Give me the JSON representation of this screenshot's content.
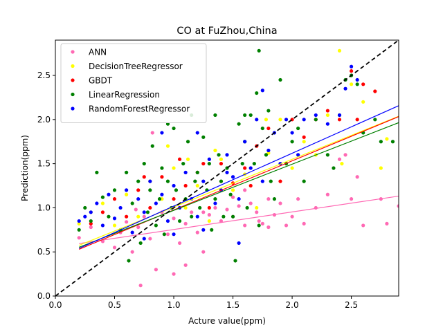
{
  "chart_data": {
    "type": "scatter",
    "title": "CO at FuZhou,China",
    "xlabel": "Acture value(ppm)",
    "ylabel": "Prediction(ppm)",
    "xlim": [
      0.0,
      2.9
    ],
    "ylim": [
      0.0,
      2.9
    ],
    "xticks": [
      0.0,
      0.5,
      1.0,
      1.5,
      2.0,
      2.5
    ],
    "yticks": [
      0.0,
      0.5,
      1.0,
      1.5,
      2.0,
      2.5
    ],
    "xtick_labels": [
      "0.0",
      "0.5",
      "1.0",
      "1.5",
      "2.0",
      "2.5"
    ],
    "ytick_labels": [
      "0.0",
      "0.5",
      "1.0",
      "1.5",
      "2.0",
      "2.5"
    ],
    "grid": false,
    "legend_position": "top-left",
    "identity_line": {
      "style": "dashed",
      "color": "#000000",
      "x": [
        0.0,
        2.9
      ],
      "y": [
        0.0,
        2.9
      ]
    },
    "series": [
      {
        "name": "ANN",
        "color": "#ff69b4",
        "points": [
          [
            0.2,
            0.66
          ],
          [
            0.3,
            0.78
          ],
          [
            0.4,
            0.62
          ],
          [
            0.5,
            0.55
          ],
          [
            0.55,
            0.72
          ],
          [
            0.6,
            0.84
          ],
          [
            0.65,
            0.5
          ],
          [
            0.7,
            0.78
          ],
          [
            0.72,
            0.12
          ],
          [
            0.75,
            0.9
          ],
          [
            0.8,
            0.65
          ],
          [
            0.85,
            0.3
          ],
          [
            0.9,
            0.95
          ],
          [
            0.95,
            0.7
          ],
          [
            1.0,
            0.88
          ],
          [
            1.05,
            0.6
          ],
          [
            1.1,
            0.82
          ],
          [
            1.15,
            0.95
          ],
          [
            1.2,
            0.72
          ],
          [
            1.25,
            0.5
          ],
          [
            1.3,
            0.92
          ],
          [
            1.35,
            1.0
          ],
          [
            1.4,
            0.85
          ],
          [
            1.45,
            0.98
          ],
          [
            1.5,
            0.9
          ],
          [
            1.55,
            1.02
          ],
          [
            1.6,
            0.8
          ],
          [
            1.65,
            1.05
          ],
          [
            1.7,
            0.95
          ],
          [
            1.75,
            0.82
          ],
          [
            1.8,
            1.1
          ],
          [
            1.85,
            0.92
          ],
          [
            1.9,
            1.05
          ],
          [
            1.95,
            0.8
          ],
          [
            2.0,
            0.9
          ],
          [
            2.05,
            1.1
          ],
          [
            2.1,
            0.82
          ],
          [
            2.2,
            1.0
          ],
          [
            2.3,
            1.15
          ],
          [
            2.4,
            1.55
          ],
          [
            2.45,
            1.6
          ],
          [
            2.5,
            1.1
          ],
          [
            2.55,
            1.35
          ],
          [
            2.6,
            0.8
          ],
          [
            2.75,
            1.1
          ],
          [
            2.8,
            0.82
          ],
          [
            2.9,
            1.02
          ],
          [
            1.4,
            1.3
          ],
          [
            1.6,
            1.2
          ],
          [
            1.8,
            0.78
          ],
          [
            0.82,
            1.85
          ],
          [
            1.0,
            0.25
          ],
          [
            1.1,
            0.35
          ],
          [
            0.68,
            0.98
          ],
          [
            1.25,
            0.95
          ],
          [
            1.5,
            1.12
          ],
          [
            1.72,
            0.85
          ]
        ],
        "fit": {
          "slope": 0.199,
          "intercept": 0.555,
          "x_range": [
            0.2,
            2.9
          ]
        }
      },
      {
        "name": "DecisionTreeRegressor",
        "color": "#ffff00",
        "points": [
          [
            0.2,
            0.82
          ],
          [
            0.3,
            0.95
          ],
          [
            0.4,
            1.05
          ],
          [
            0.5,
            0.8
          ],
          [
            0.6,
            1.15
          ],
          [
            0.7,
            0.9
          ],
          [
            0.8,
            1.3
          ],
          [
            0.9,
            1.1
          ],
          [
            1.0,
            1.45
          ],
          [
            1.1,
            1.0
          ],
          [
            1.2,
            1.25
          ],
          [
            1.3,
            0.85
          ],
          [
            1.4,
            1.55
          ],
          [
            1.5,
            1.2
          ],
          [
            1.6,
            1.38
          ],
          [
            1.7,
            1.0
          ],
          [
            1.8,
            1.62
          ],
          [
            1.9,
            2.0
          ],
          [
            2.0,
            1.45
          ],
          [
            2.1,
            1.75
          ],
          [
            2.2,
            1.6
          ],
          [
            2.3,
            2.05
          ],
          [
            2.4,
            2.78
          ],
          [
            2.42,
            1.5
          ],
          [
            2.5,
            2.4
          ],
          [
            2.6,
            2.2
          ],
          [
            2.75,
            1.45
          ],
          [
            2.8,
            1.78
          ],
          [
            1.78,
            2.0
          ],
          [
            0.95,
            1.7
          ],
          [
            1.12,
            1.55
          ],
          [
            1.35,
            1.65
          ]
        ],
        "fit": {
          "slope": 0.542,
          "intercept": 0.466,
          "x_range": [
            0.2,
            2.9
          ]
        }
      },
      {
        "name": "GBDT",
        "color": "#ff0000",
        "points": [
          [
            0.3,
            0.82
          ],
          [
            0.4,
            0.95
          ],
          [
            0.5,
            1.1
          ],
          [
            0.6,
            0.9
          ],
          [
            0.7,
            1.2
          ],
          [
            0.8,
            1.0
          ],
          [
            0.9,
            1.35
          ],
          [
            1.0,
            1.1
          ],
          [
            1.1,
            1.25
          ],
          [
            1.2,
            1.4
          ],
          [
            1.3,
            1.0
          ],
          [
            1.4,
            1.5
          ],
          [
            1.5,
            1.28
          ],
          [
            1.6,
            1.45
          ],
          [
            1.7,
            1.7
          ],
          [
            1.8,
            1.9
          ],
          [
            1.9,
            1.3
          ],
          [
            2.0,
            2.0
          ],
          [
            2.1,
            1.8
          ],
          [
            2.2,
            2.0
          ],
          [
            2.3,
            2.1
          ],
          [
            2.4,
            2.0
          ],
          [
            2.5,
            2.55
          ],
          [
            2.55,
            2.0
          ],
          [
            2.6,
            2.4
          ],
          [
            2.7,
            2.32
          ],
          [
            0.75,
            1.35
          ],
          [
            1.05,
            1.55
          ],
          [
            1.25,
            1.5
          ],
          [
            1.65,
            1.25
          ]
        ],
        "fit": {
          "slope": 0.557,
          "intercept": 0.418,
          "x_range": [
            0.2,
            2.9
          ]
        }
      },
      {
        "name": "LinearRegression",
        "color": "#008000",
        "points": [
          [
            0.2,
            0.75
          ],
          [
            0.25,
            1.0
          ],
          [
            0.3,
            0.85
          ],
          [
            0.35,
            1.4
          ],
          [
            0.4,
            1.12
          ],
          [
            0.45,
            0.9
          ],
          [
            0.5,
            1.2
          ],
          [
            0.55,
            0.75
          ],
          [
            0.6,
            1.4
          ],
          [
            0.62,
            0.4
          ],
          [
            0.65,
            1.05
          ],
          [
            0.7,
            1.3
          ],
          [
            0.72,
            0.6
          ],
          [
            0.75,
            1.5
          ],
          [
            0.78,
            0.95
          ],
          [
            0.8,
            1.2
          ],
          [
            0.82,
            1.7
          ],
          [
            0.85,
            0.8
          ],
          [
            0.88,
            1.1
          ],
          [
            0.9,
            1.45
          ],
          [
            0.92,
            0.7
          ],
          [
            0.95,
            1.3
          ],
          [
            0.98,
            1.0
          ],
          [
            1.0,
            1.9
          ],
          [
            1.02,
            1.2
          ],
          [
            1.05,
            0.85
          ],
          [
            1.08,
            1.5
          ],
          [
            1.1,
            1.1
          ],
          [
            1.12,
            1.75
          ],
          [
            1.15,
            0.9
          ],
          [
            1.18,
            1.3
          ],
          [
            1.2,
            1.4
          ],
          [
            1.22,
            1.0
          ],
          [
            1.25,
            1.8
          ],
          [
            1.28,
            1.2
          ],
          [
            1.3,
            1.5
          ],
          [
            1.32,
            0.75
          ],
          [
            1.35,
            1.1
          ],
          [
            1.38,
            1.6
          ],
          [
            1.4,
            1.3
          ],
          [
            1.42,
            0.9
          ],
          [
            1.45,
            1.45
          ],
          [
            1.48,
            1.15
          ],
          [
            1.5,
            0.9
          ],
          [
            1.52,
            0.4
          ],
          [
            1.55,
            1.95
          ],
          [
            1.58,
            1.5
          ],
          [
            1.6,
            1.75
          ],
          [
            1.62,
            1.0
          ],
          [
            1.65,
            2.05
          ],
          [
            1.68,
            1.5
          ],
          [
            1.7,
            2.3
          ],
          [
            1.72,
            0.8
          ],
          [
            1.75,
            1.9
          ],
          [
            1.78,
            1.6
          ],
          [
            1.8,
            2.1
          ],
          [
            1.82,
            1.3
          ],
          [
            1.85,
            1.1
          ],
          [
            1.9,
            2.45
          ],
          [
            1.95,
            1.5
          ],
          [
            2.0,
            1.75
          ],
          [
            2.05,
            1.9
          ],
          [
            2.1,
            1.3
          ],
          [
            2.2,
            2.0
          ],
          [
            2.3,
            1.6
          ],
          [
            2.35,
            1.45
          ],
          [
            2.4,
            2.05
          ],
          [
            2.45,
            2.45
          ],
          [
            2.5,
            2.5
          ],
          [
            2.55,
            2.4
          ],
          [
            2.6,
            1.85
          ],
          [
            2.7,
            2.0
          ],
          [
            2.75,
            1.75
          ],
          [
            2.85,
            1.75
          ],
          [
            1.72,
            2.78
          ],
          [
            1.6,
            2.05
          ],
          [
            1.35,
            2.05
          ],
          [
            0.95,
            1.95
          ],
          [
            1.15,
            2.05
          ]
        ],
        "fit": {
          "slope": 0.523,
          "intercept": 0.448,
          "x_range": [
            0.2,
            2.9
          ]
        }
      },
      {
        "name": "RandomForestRegressor",
        "color": "#0000ff",
        "points": [
          [
            0.2,
            0.85
          ],
          [
            0.25,
            0.9
          ],
          [
            0.3,
            0.95
          ],
          [
            0.35,
            1.05
          ],
          [
            0.4,
            0.8
          ],
          [
            0.45,
            1.15
          ],
          [
            0.5,
            0.88
          ],
          [
            0.55,
            1.0
          ],
          [
            0.6,
            1.2
          ],
          [
            0.65,
            0.72
          ],
          [
            0.7,
            1.1
          ],
          [
            0.75,
            0.95
          ],
          [
            0.8,
            1.3
          ],
          [
            0.85,
            1.05
          ],
          [
            0.9,
            1.15
          ],
          [
            0.95,
            0.85
          ],
          [
            1.0,
            1.25
          ],
          [
            1.05,
            1.0
          ],
          [
            1.1,
            1.4
          ],
          [
            1.15,
            1.1
          ],
          [
            1.2,
            0.9
          ],
          [
            1.25,
            1.3
          ],
          [
            1.3,
            1.55
          ],
          [
            1.35,
            1.05
          ],
          [
            1.4,
            1.2
          ],
          [
            1.45,
            1.6
          ],
          [
            1.5,
            1.35
          ],
          [
            1.55,
            1.1
          ],
          [
            1.6,
            1.75
          ],
          [
            1.65,
            1.45
          ],
          [
            1.7,
            2.0
          ],
          [
            1.75,
            1.3
          ],
          [
            1.8,
            1.65
          ],
          [
            1.85,
            1.85
          ],
          [
            1.9,
            1.5
          ],
          [
            1.95,
            2.0
          ],
          [
            2.0,
            1.85
          ],
          [
            2.05,
            1.6
          ],
          [
            2.1,
            2.0
          ],
          [
            2.2,
            2.05
          ],
          [
            2.3,
            1.95
          ],
          [
            2.4,
            2.05
          ],
          [
            2.45,
            2.35
          ],
          [
            2.5,
            2.6
          ],
          [
            2.55,
            2.45
          ],
          [
            1.75,
            2.33
          ],
          [
            1.45,
            1.4
          ],
          [
            0.9,
            1.85
          ],
          [
            1.2,
            1.85
          ],
          [
            1.0,
            0.7
          ],
          [
            1.25,
            0.75
          ],
          [
            0.75,
            0.65
          ],
          [
            1.55,
            0.6
          ]
        ],
        "fit": {
          "slope": 0.599,
          "intercept": 0.42,
          "x_range": [
            0.2,
            2.9
          ]
        }
      }
    ]
  }
}
